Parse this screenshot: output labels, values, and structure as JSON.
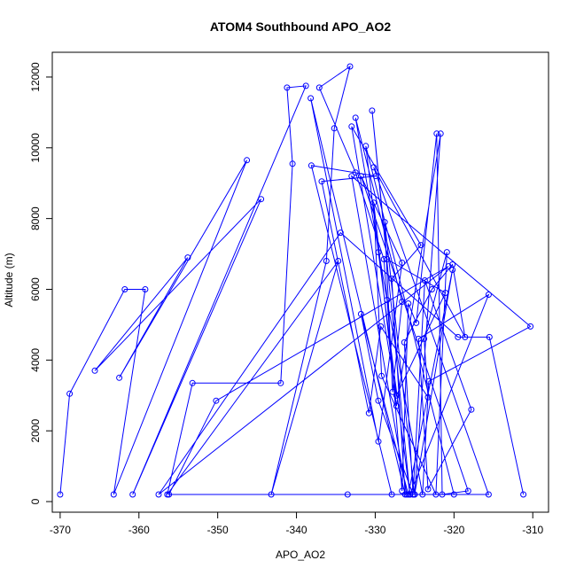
{
  "chart_data": {
    "type": "line",
    "title": "ATOM4 Southbound APO_AO2",
    "xlabel": "APO_AO2",
    "ylabel": "Altitude (m)",
    "xlim": [
      -371,
      -308
    ],
    "ylim": [
      -300,
      12700
    ],
    "xticks": [
      -370,
      -360,
      -350,
      -340,
      -330,
      -320,
      -310
    ],
    "yticks": [
      0,
      2000,
      4000,
      6000,
      8000,
      10000,
      12000
    ],
    "grid": false,
    "line_color": "#0000ff",
    "marker": "open-circle",
    "series": [
      {
        "x": [
          -370,
          -368.8,
          -361.8,
          -359.2,
          -363.2,
          -346.3,
          -362.5,
          -353.8,
          -365.6,
          -344.5,
          -360.8,
          -338.8,
          -341.2,
          -340.5,
          -342,
          -353.2,
          -356.4,
          -334.7,
          -343.2,
          -336.2,
          -335.2,
          -333.2,
          -337.1,
          -332.5,
          -328.9,
          -326.6,
          -325.8,
          -324.8,
          -322.2,
          -321.5,
          -318.2,
          -331.8,
          -326.6,
          -329.6,
          -338.2,
          -326.2,
          -327.9,
          -324.2,
          -333,
          -327.3,
          -321.1,
          -328.5,
          -330.4,
          -325.6,
          -329.6,
          -331.2,
          -320,
          -325.6,
          -315.6,
          -324.5,
          -323.3,
          -317.8,
          -323.7,
          -325.2,
          -329.6,
          -331.8,
          -325.8,
          -320.2,
          -325,
          -328.8,
          -327.8,
          -326.6,
          -332.5,
          -328.5,
          -324,
          -323.2,
          -310.3,
          -333,
          -326,
          -325,
          -321.7,
          -327.3,
          -330.2,
          -329.2,
          -322.3,
          -320.9,
          -323.8,
          -323.3,
          -329.3,
          -330.8,
          -336.8,
          -329.9,
          -338.1,
          -327.9,
          -333.5,
          -315.6,
          -330.2,
          -318.6,
          -320.2,
          -322.8,
          -326.3,
          -325.2,
          -356.2,
          -350.2,
          -320.7,
          -357.5,
          -334.4,
          -319.5,
          -315.5,
          -311.2
        ],
        "y": [
          200,
          3050,
          6000,
          6000,
          200,
          9650,
          3500,
          6900,
          3700,
          8550,
          200,
          11750,
          11700,
          9550,
          3350,
          3350,
          200,
          6800,
          200,
          6800,
          10550,
          12300,
          11700,
          9300,
          6850,
          300,
          5600,
          5050,
          10400,
          200,
          300,
          9200,
          6750,
          1700,
          11400,
          200,
          6300,
          7250,
          10600,
          3000,
          5900,
          6850,
          11050,
          200,
          7050,
          10050,
          200,
          200,
          5850,
          4600,
          350,
          2600,
          6250,
          200,
          2850,
          5300,
          200,
          6550,
          200,
          7900,
          3100,
          5650,
          10850,
          5700,
          200,
          3400,
          4950,
          9200,
          200,
          200,
          10400,
          2700,
          8450,
          3550,
          200,
          7050,
          4600,
          2950,
          4950,
          2500,
          9050,
          9200,
          9500,
          200,
          200,
          200,
          9450,
          4650,
          6700,
          6000,
          4500,
          200,
          200,
          2850,
          6650,
          200,
          7600,
          4650,
          4650,
          200
        ]
      }
    ]
  }
}
